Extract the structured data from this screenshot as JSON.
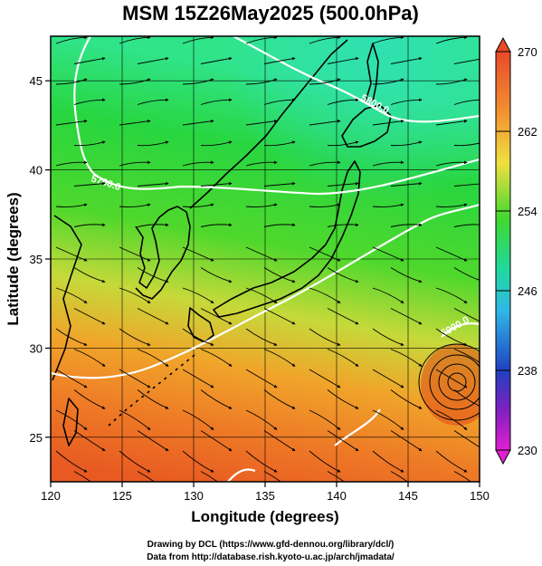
{
  "title": "MSM 15Z26May2025 (500.0hPa)",
  "xlabel": "Longitude (degrees)",
  "ylabel": "Latitude  (degrees)",
  "credits": [
    "Drawing by DCL (https://www.gfd-dennou.org/library/dcl/)",
    "Data from http://database.rish.kyoto-u.ac.jp/arch/jmadata/"
  ],
  "colors": {
    "coast": "#000000",
    "contour": "#ffffff",
    "arrows": "#000000"
  },
  "chart_data": {
    "type": "heatmap",
    "x_range": [
      120,
      150
    ],
    "y_range": [
      22.5,
      47.5
    ],
    "x_ticks": [
      120,
      125,
      130,
      135,
      140,
      145,
      150
    ],
    "y_ticks": [
      25,
      30,
      35,
      40,
      45
    ],
    "colorbar": {
      "min": 230,
      "max": 270,
      "tick_labels": [
        "270",
        "262",
        "254",
        "246",
        "238",
        "230"
      ],
      "tick_values": [
        270,
        262,
        254,
        246,
        238,
        230
      ]
    },
    "contour_labels": [
      "5700.0",
      "5800.0",
      "5900.0"
    ],
    "grid": true
  }
}
